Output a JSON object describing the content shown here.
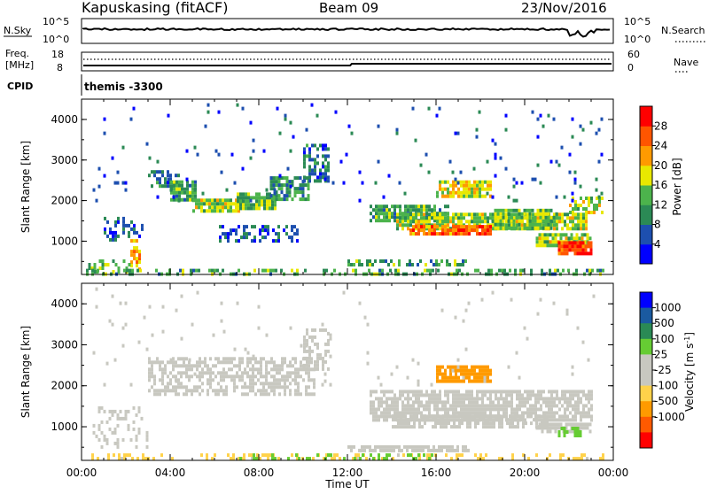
{
  "header": {
    "station": "Kapuskasing (fitACF)",
    "beam": "Beam 09",
    "date": "23/Nov/2016"
  },
  "summary_panels": {
    "nsky": {
      "label": "N.Sky",
      "left_top": "10^5",
      "left_bottom": "10^0",
      "right_top": "10^5",
      "right_bottom": "10^0",
      "right_label": "N.Search"
    },
    "freq": {
      "label_line1": "Freq.",
      "label_line2": "[MHz]",
      "left_top": "18",
      "left_bottom": "8",
      "right_top": "60",
      "right_bottom": "0",
      "right_label": "Nave"
    },
    "cpid": {
      "label": "CPID",
      "value": "themis -3300"
    }
  },
  "colors": {
    "power_scale": [
      "#0000ff",
      "#1d4faf",
      "#2b8a55",
      "#4cb34c",
      "#e8e800",
      "#ff9a00",
      "#ff5500",
      "#ff0000"
    ],
    "velocity_scale": [
      "#ff0000",
      "#ff5a00",
      "#ff9a00",
      "#ffd24a",
      "#c8c8c0",
      "#c8c8c0",
      "#66cc33",
      "#2a8a55",
      "#1a5aa0",
      "#0000ff"
    ],
    "ground_scatter": "#c8c8c0"
  },
  "chart_data": [
    {
      "type": "heatmap",
      "name": "power",
      "xlabel": "",
      "ylabel": "Slant Range [km]",
      "xlim": [
        "00:00",
        "24:00"
      ],
      "ylim": [
        180,
        4500
      ],
      "yticks": [
        1000,
        2000,
        3000,
        4000
      ],
      "colorbar": {
        "label": "Power [dB]",
        "range": [
          0,
          32
        ],
        "ticks": [
          "4",
          "8",
          "12",
          "16",
          "20",
          "24",
          "28"
        ]
      },
      "bands": [
        {
          "t": [
            3.0,
            4.4
          ],
          "r": [
            2350,
            2750
          ],
          "v": 8,
          "d": 0.6
        },
        {
          "t": [
            4.0,
            5.2
          ],
          "r": [
            2000,
            2500
          ],
          "v": 12,
          "d": 0.8
        },
        {
          "t": [
            5.0,
            7.2
          ],
          "r": [
            1750,
            2050
          ],
          "v": 16,
          "d": 0.9
        },
        {
          "t": [
            7.0,
            8.8
          ],
          "r": [
            1850,
            2200
          ],
          "v": 14,
          "d": 0.85
        },
        {
          "t": [
            8.5,
            10.2
          ],
          "r": [
            2000,
            2600
          ],
          "v": 10,
          "d": 0.7
        },
        {
          "t": [
            10.0,
            11.2
          ],
          "r": [
            2500,
            3400
          ],
          "v": 8,
          "d": 0.5
        },
        {
          "t": [
            1.0,
            2.8
          ],
          "r": [
            1000,
            1600
          ],
          "v": 6,
          "d": 0.35
        },
        {
          "t": [
            2.2,
            2.6
          ],
          "r": [
            350,
            1050
          ],
          "v": 22,
          "d": 0.6
        },
        {
          "t": [
            0.3,
            2.2
          ],
          "r": [
            250,
            550
          ],
          "v": 14,
          "d": 0.35
        },
        {
          "t": [
            6.2,
            9.8
          ],
          "r": [
            1050,
            1400
          ],
          "v": 6,
          "d": 0.35
        },
        {
          "t": [
            13.0,
            16.5
          ],
          "r": [
            1500,
            1900
          ],
          "v": 12,
          "d": 0.8
        },
        {
          "t": [
            14.2,
            22.8
          ],
          "r": [
            1300,
            1700
          ],
          "v": 16,
          "d": 0.85
        },
        {
          "t": [
            14.8,
            18.5
          ],
          "r": [
            1150,
            1400
          ],
          "v": 24,
          "d": 0.85
        },
        {
          "t": [
            18.5,
            21.5
          ],
          "r": [
            1300,
            1800
          ],
          "v": 14,
          "d": 0.8
        },
        {
          "t": [
            16.0,
            18.5
          ],
          "r": [
            2100,
            2500
          ],
          "v": 18,
          "d": 0.8
        },
        {
          "t": [
            20.5,
            23.0
          ],
          "r": [
            900,
            1200
          ],
          "v": 16,
          "d": 0.85
        },
        {
          "t": [
            21.5,
            23.0
          ],
          "r": [
            700,
            1000
          ],
          "v": 28,
          "d": 0.95
        },
        {
          "t": [
            12.0,
            17.5
          ],
          "r": [
            400,
            550
          ],
          "v": 12,
          "d": 0.45
        },
        {
          "t": [
            22.0,
            23.5
          ],
          "r": [
            1700,
            2100
          ],
          "v": 16,
          "d": 0.6
        },
        {
          "t": [
            0.2,
            23.5
          ],
          "r": [
            180,
            320
          ],
          "v": 12,
          "d": 0.35
        },
        {
          "t": [
            0.5,
            23.5
          ],
          "r": [
            2000,
            4400
          ],
          "v": 6,
          "d": 0.025
        }
      ]
    },
    {
      "type": "heatmap",
      "name": "velocity",
      "xlabel": "Time UT",
      "ylabel": "Slant Range [km]",
      "xlim": [
        "00:00",
        "24:00"
      ],
      "ylim": [
        180,
        4500
      ],
      "yticks": [
        1000,
        2000,
        3000,
        4000
      ],
      "xticks": [
        "00:00",
        "04:00",
        "08:00",
        "12:00",
        "16:00",
        "20:00",
        "00:00"
      ],
      "colorbar": {
        "label": "Velocity [m s^-1]",
        "ticks": [
          "1000",
          "500",
          "100",
          "25",
          "-25",
          "-100",
          "-500",
          "-1000"
        ]
      },
      "bands": [
        {
          "t": [
            3.0,
            10.5
          ],
          "r": [
            1750,
            2700
          ],
          "v": "gs",
          "d": 0.55
        },
        {
          "t": [
            10.0,
            11.2
          ],
          "r": [
            2400,
            3400
          ],
          "v": "gs",
          "d": 0.45
        },
        {
          "t": [
            13.0,
            23.0
          ],
          "r": [
            1150,
            1900
          ],
          "v": "gs",
          "d": 0.8
        },
        {
          "t": [
            14.0,
            21.0
          ],
          "r": [
            1000,
            1300
          ],
          "v": "gs",
          "d": 0.65
        },
        {
          "t": [
            16.0,
            18.5
          ],
          "r": [
            2100,
            2500
          ],
          "v": "-300",
          "d": 0.85
        },
        {
          "t": [
            20.5,
            23.0
          ],
          "r": [
            850,
            1100
          ],
          "v": "gs",
          "d": 0.7
        },
        {
          "t": [
            21.5,
            22.5
          ],
          "r": [
            750,
            1000
          ],
          "v": "60",
          "d": 0.6
        },
        {
          "t": [
            0.5,
            3.0
          ],
          "r": [
            500,
            1500
          ],
          "v": "gs",
          "d": 0.25
        },
        {
          "t": [
            12.0,
            17.5
          ],
          "r": [
            400,
            550
          ],
          "v": "gs",
          "d": 0.7
        },
        {
          "t": [
            0.2,
            23.5
          ],
          "r": [
            180,
            350
          ],
          "v": "-60",
          "d": 0.3
        },
        {
          "t": [
            7.0,
            16.0
          ],
          "r": [
            180,
            350
          ],
          "v": "60",
          "d": 0.2
        },
        {
          "t": [
            0.5,
            23.5
          ],
          "r": [
            2000,
            4400
          ],
          "v": "gs",
          "d": 0.02
        }
      ]
    }
  ]
}
